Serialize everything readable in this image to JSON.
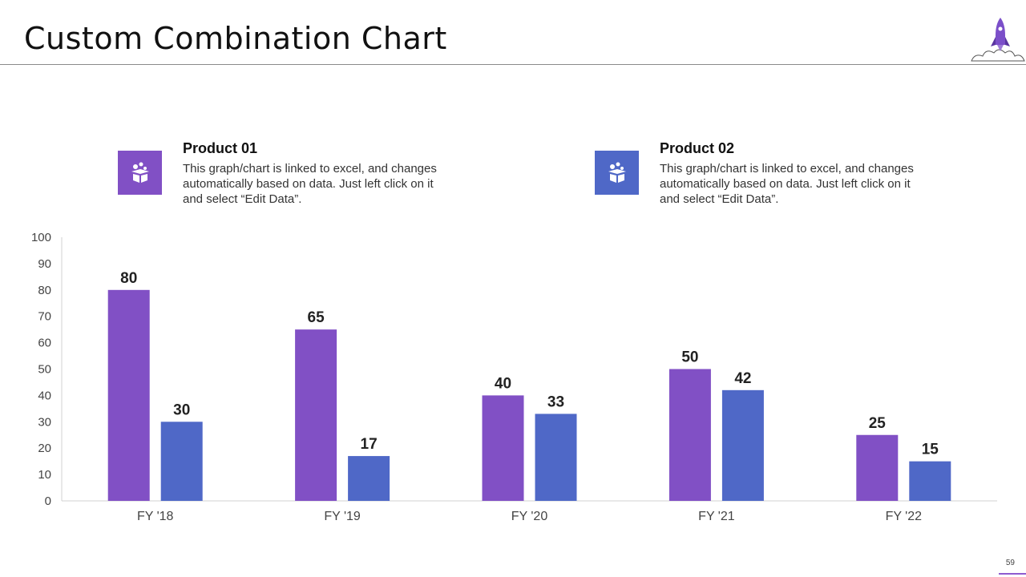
{
  "slide": {
    "title": "Custom Combination Chart",
    "page_number": "59"
  },
  "legend": [
    {
      "title": "Product 01",
      "description": "This graph/chart is linked to excel, and changes automatically based on data. Just left click on it and select “Edit Data”.",
      "color": "#8150c5",
      "icon": "gift-box-icon"
    },
    {
      "title": "Product 02",
      "description": "This graph/chart is linked to excel, and changes automatically based on data. Just left click on it and select “Edit Data”.",
      "color": "#4f68c7",
      "icon": "gift-box-icon"
    }
  ],
  "chart_data": {
    "type": "bar",
    "title": "",
    "xlabel": "",
    "ylabel": "",
    "categories": [
      "FY '18",
      "FY '19",
      "FY '20",
      "FY '21",
      "FY '22"
    ],
    "series": [
      {
        "name": "Product 01",
        "values": [
          80,
          65,
          40,
          50,
          25
        ],
        "color": "#8150c5"
      },
      {
        "name": "Product 02",
        "values": [
          30,
          17,
          33,
          42,
          15
        ],
        "color": "#4f68c7"
      }
    ],
    "ylim": [
      0,
      100
    ],
    "yticks": [
      0,
      10,
      20,
      30,
      40,
      50,
      60,
      70,
      80,
      90,
      100
    ],
    "grid": false,
    "data_labels": true
  }
}
